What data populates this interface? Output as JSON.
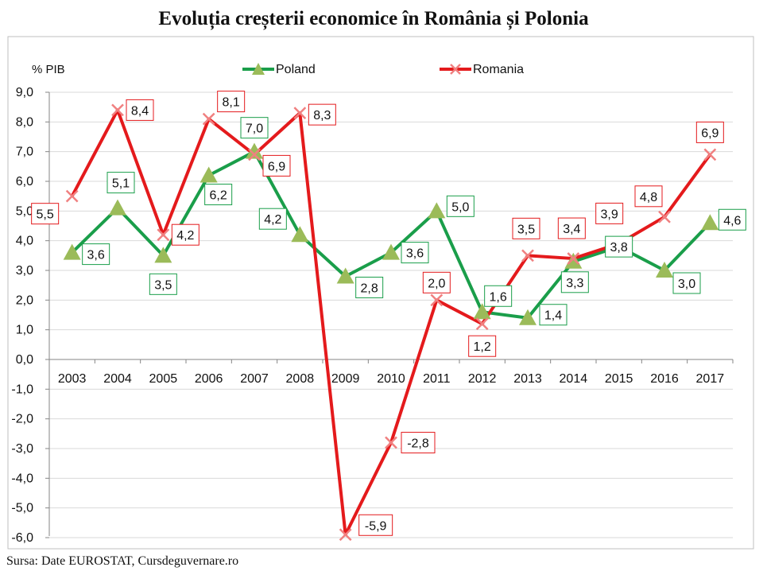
{
  "title": "Evoluția creșterii economice în România și Polonia",
  "source": "Sursa: Date EUROSTAT, Cursdeguvernare.ro",
  "chart_data": {
    "type": "line",
    "ylabel": "% PIB",
    "ylim": [
      -6,
      9
    ],
    "yticks": [
      "9,0",
      "8,0",
      "7,0",
      "6,0",
      "5,0",
      "4,0",
      "3,0",
      "2,0",
      "1,0",
      "0,0",
      "-1,0",
      "-2,0",
      "-3,0",
      "-4,0",
      "-5,0",
      "-6,0"
    ],
    "categories": [
      "2003",
      "2004",
      "2005",
      "2006",
      "2007",
      "2008",
      "2009",
      "2010",
      "2011",
      "2012",
      "2013",
      "2014",
      "2015",
      "2016",
      "2017"
    ],
    "legend_position": "top",
    "grid": true,
    "series": [
      {
        "name": "Poland",
        "color": "#1a9e4a",
        "marker": "triangle",
        "marker_color": "#9bbb59",
        "values": [
          3.6,
          5.1,
          3.5,
          6.2,
          7.0,
          4.2,
          2.8,
          3.6,
          5.0,
          1.6,
          1.4,
          3.3,
          3.8,
          3.0,
          4.6
        ],
        "labels": [
          "3,6",
          "5,1",
          "3,5",
          "6,2",
          "7,0",
          "4,2",
          "2,8",
          "3,6",
          "5,0",
          "1,6",
          "1,4",
          "3,3",
          "3,8",
          "3,0",
          "4,6"
        ]
      },
      {
        "name": "Romania",
        "color": "#e41a1c",
        "marker": "x",
        "marker_color": "#f08080",
        "values": [
          5.5,
          8.4,
          4.2,
          8.1,
          6.9,
          8.3,
          -5.9,
          -2.8,
          2.0,
          1.2,
          3.5,
          3.4,
          3.9,
          4.8,
          6.9
        ],
        "labels": [
          "5,5",
          "8,4",
          "4,2",
          "8,1",
          "6,9",
          "8,3",
          "-5,9",
          "-2,8",
          "2,0",
          "1,2",
          "3,5",
          "3,4",
          "3,9",
          "4,8",
          "6,9"
        ]
      }
    ]
  }
}
